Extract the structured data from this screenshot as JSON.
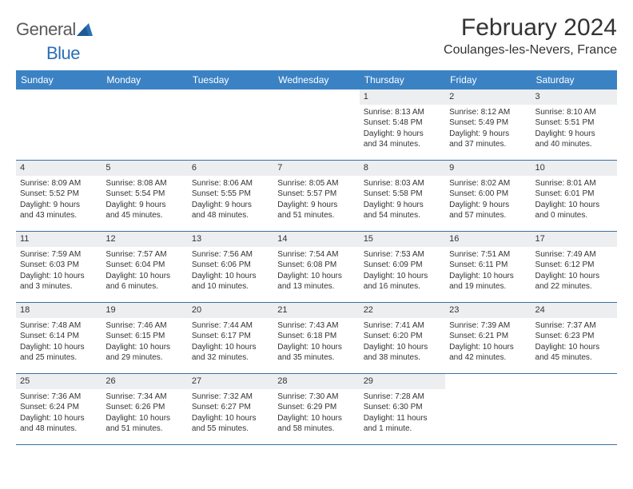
{
  "logo": {
    "text1": "General",
    "text2": "Blue"
  },
  "title": "February 2024",
  "location": "Coulanges-les-Nevers, France",
  "day_header_bg": "#3b82c4",
  "day_names": [
    "Sunday",
    "Monday",
    "Tuesday",
    "Wednesday",
    "Thursday",
    "Friday",
    "Saturday"
  ],
  "weeks": [
    [
      null,
      null,
      null,
      null,
      {
        "n": "1",
        "sr": "Sunrise: 8:13 AM",
        "ss": "Sunset: 5:48 PM",
        "dl1": "Daylight: 9 hours",
        "dl2": "and 34 minutes."
      },
      {
        "n": "2",
        "sr": "Sunrise: 8:12 AM",
        "ss": "Sunset: 5:49 PM",
        "dl1": "Daylight: 9 hours",
        "dl2": "and 37 minutes."
      },
      {
        "n": "3",
        "sr": "Sunrise: 8:10 AM",
        "ss": "Sunset: 5:51 PM",
        "dl1": "Daylight: 9 hours",
        "dl2": "and 40 minutes."
      }
    ],
    [
      {
        "n": "4",
        "sr": "Sunrise: 8:09 AM",
        "ss": "Sunset: 5:52 PM",
        "dl1": "Daylight: 9 hours",
        "dl2": "and 43 minutes."
      },
      {
        "n": "5",
        "sr": "Sunrise: 8:08 AM",
        "ss": "Sunset: 5:54 PM",
        "dl1": "Daylight: 9 hours",
        "dl2": "and 45 minutes."
      },
      {
        "n": "6",
        "sr": "Sunrise: 8:06 AM",
        "ss": "Sunset: 5:55 PM",
        "dl1": "Daylight: 9 hours",
        "dl2": "and 48 minutes."
      },
      {
        "n": "7",
        "sr": "Sunrise: 8:05 AM",
        "ss": "Sunset: 5:57 PM",
        "dl1": "Daylight: 9 hours",
        "dl2": "and 51 minutes."
      },
      {
        "n": "8",
        "sr": "Sunrise: 8:03 AM",
        "ss": "Sunset: 5:58 PM",
        "dl1": "Daylight: 9 hours",
        "dl2": "and 54 minutes."
      },
      {
        "n": "9",
        "sr": "Sunrise: 8:02 AM",
        "ss": "Sunset: 6:00 PM",
        "dl1": "Daylight: 9 hours",
        "dl2": "and 57 minutes."
      },
      {
        "n": "10",
        "sr": "Sunrise: 8:01 AM",
        "ss": "Sunset: 6:01 PM",
        "dl1": "Daylight: 10 hours",
        "dl2": "and 0 minutes."
      }
    ],
    [
      {
        "n": "11",
        "sr": "Sunrise: 7:59 AM",
        "ss": "Sunset: 6:03 PM",
        "dl1": "Daylight: 10 hours",
        "dl2": "and 3 minutes."
      },
      {
        "n": "12",
        "sr": "Sunrise: 7:57 AM",
        "ss": "Sunset: 6:04 PM",
        "dl1": "Daylight: 10 hours",
        "dl2": "and 6 minutes."
      },
      {
        "n": "13",
        "sr": "Sunrise: 7:56 AM",
        "ss": "Sunset: 6:06 PM",
        "dl1": "Daylight: 10 hours",
        "dl2": "and 10 minutes."
      },
      {
        "n": "14",
        "sr": "Sunrise: 7:54 AM",
        "ss": "Sunset: 6:08 PM",
        "dl1": "Daylight: 10 hours",
        "dl2": "and 13 minutes."
      },
      {
        "n": "15",
        "sr": "Sunrise: 7:53 AM",
        "ss": "Sunset: 6:09 PM",
        "dl1": "Daylight: 10 hours",
        "dl2": "and 16 minutes."
      },
      {
        "n": "16",
        "sr": "Sunrise: 7:51 AM",
        "ss": "Sunset: 6:11 PM",
        "dl1": "Daylight: 10 hours",
        "dl2": "and 19 minutes."
      },
      {
        "n": "17",
        "sr": "Sunrise: 7:49 AM",
        "ss": "Sunset: 6:12 PM",
        "dl1": "Daylight: 10 hours",
        "dl2": "and 22 minutes."
      }
    ],
    [
      {
        "n": "18",
        "sr": "Sunrise: 7:48 AM",
        "ss": "Sunset: 6:14 PM",
        "dl1": "Daylight: 10 hours",
        "dl2": "and 25 minutes."
      },
      {
        "n": "19",
        "sr": "Sunrise: 7:46 AM",
        "ss": "Sunset: 6:15 PM",
        "dl1": "Daylight: 10 hours",
        "dl2": "and 29 minutes."
      },
      {
        "n": "20",
        "sr": "Sunrise: 7:44 AM",
        "ss": "Sunset: 6:17 PM",
        "dl1": "Daylight: 10 hours",
        "dl2": "and 32 minutes."
      },
      {
        "n": "21",
        "sr": "Sunrise: 7:43 AM",
        "ss": "Sunset: 6:18 PM",
        "dl1": "Daylight: 10 hours",
        "dl2": "and 35 minutes."
      },
      {
        "n": "22",
        "sr": "Sunrise: 7:41 AM",
        "ss": "Sunset: 6:20 PM",
        "dl1": "Daylight: 10 hours",
        "dl2": "and 38 minutes."
      },
      {
        "n": "23",
        "sr": "Sunrise: 7:39 AM",
        "ss": "Sunset: 6:21 PM",
        "dl1": "Daylight: 10 hours",
        "dl2": "and 42 minutes."
      },
      {
        "n": "24",
        "sr": "Sunrise: 7:37 AM",
        "ss": "Sunset: 6:23 PM",
        "dl1": "Daylight: 10 hours",
        "dl2": "and 45 minutes."
      }
    ],
    [
      {
        "n": "25",
        "sr": "Sunrise: 7:36 AM",
        "ss": "Sunset: 6:24 PM",
        "dl1": "Daylight: 10 hours",
        "dl2": "and 48 minutes."
      },
      {
        "n": "26",
        "sr": "Sunrise: 7:34 AM",
        "ss": "Sunset: 6:26 PM",
        "dl1": "Daylight: 10 hours",
        "dl2": "and 51 minutes."
      },
      {
        "n": "27",
        "sr": "Sunrise: 7:32 AM",
        "ss": "Sunset: 6:27 PM",
        "dl1": "Daylight: 10 hours",
        "dl2": "and 55 minutes."
      },
      {
        "n": "28",
        "sr": "Sunrise: 7:30 AM",
        "ss": "Sunset: 6:29 PM",
        "dl1": "Daylight: 10 hours",
        "dl2": "and 58 minutes."
      },
      {
        "n": "29",
        "sr": "Sunrise: 7:28 AM",
        "ss": "Sunset: 6:30 PM",
        "dl1": "Daylight: 11 hours",
        "dl2": "and 1 minute."
      },
      null,
      null
    ]
  ]
}
